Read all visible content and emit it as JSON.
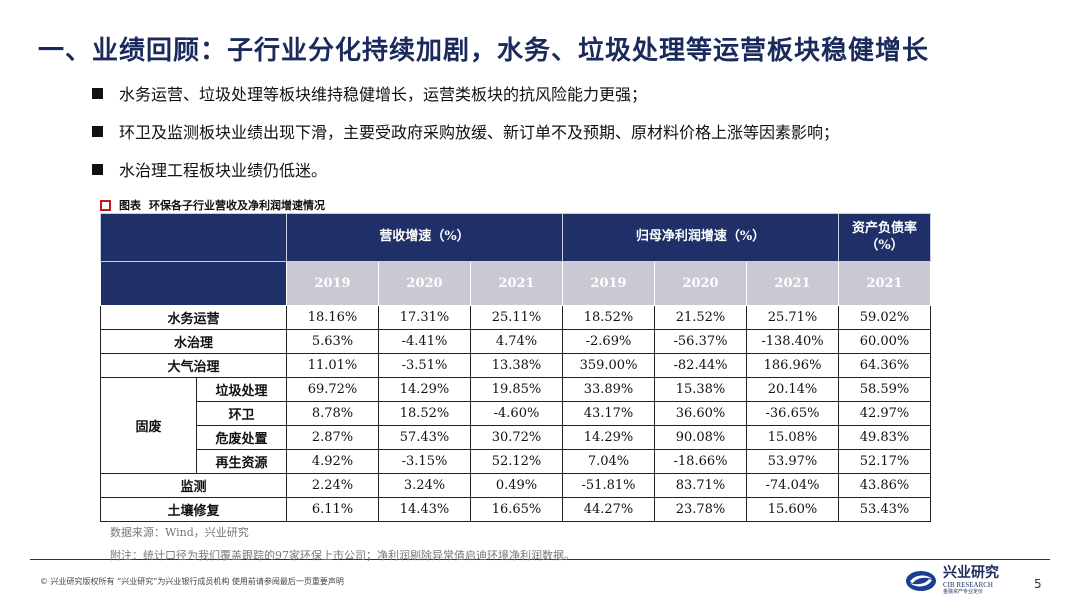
{
  "title": "一、业绩回顾：子行业分化持续加剧，水务、垃圾处理等运营板块稳健增长",
  "bullets": [
    "水务运营、垃圾处理等板块维持稳健增长，运营类板块的抗风险能力更强；",
    "环卫及监测板块业绩出现下滑，主要受政府采购放缓、新订单不及预期、原材料价格上涨等因素影响；",
    "水治理工程板块业绩仍低迷。"
  ],
  "chart_title": {
    "label": "图表",
    "text": "环保各子行业营收及净利润增速情况"
  },
  "table": {
    "group_headers": [
      "营收增速（%）",
      "归母净利润增速（%）",
      "资产负债率（%）"
    ],
    "years": [
      "2019",
      "2020",
      "2021",
      "2019",
      "2020",
      "2021",
      "2021"
    ],
    "rows": [
      {
        "category": "水务运营",
        "sub": "",
        "values": [
          "18.16%",
          "17.31%",
          "25.11%",
          "18.52%",
          "21.52%",
          "25.71%",
          "59.02%"
        ]
      },
      {
        "category": "水治理",
        "sub": "",
        "values": [
          "5.63%",
          "-4.41%",
          "4.74%",
          "-2.69%",
          "-56.37%",
          "-138.40%",
          "60.00%"
        ]
      },
      {
        "category": "大气治理",
        "sub": "",
        "values": [
          "11.01%",
          "-3.51%",
          "13.38%",
          "359.00%",
          "-82.44%",
          "186.96%",
          "64.36%"
        ]
      },
      {
        "category": "固废",
        "sub": "垃圾处理",
        "values": [
          "69.72%",
          "14.29%",
          "19.85%",
          "33.89%",
          "15.38%",
          "20.14%",
          "58.59%"
        ]
      },
      {
        "category": "固废",
        "sub": "环卫",
        "values": [
          "8.78%",
          "18.52%",
          "-4.60%",
          "43.17%",
          "36.60%",
          "-36.65%",
          "42.97%"
        ]
      },
      {
        "category": "固废",
        "sub": "危废处置",
        "values": [
          "2.87%",
          "57.43%",
          "30.72%",
          "14.29%",
          "90.08%",
          "15.08%",
          "49.83%"
        ]
      },
      {
        "category": "固废",
        "sub": "再生资源",
        "values": [
          "4.92%",
          "-3.15%",
          "52.12%",
          "7.04%",
          "-18.66%",
          "53.97%",
          "52.17%"
        ]
      },
      {
        "category": "监测",
        "sub": "",
        "values": [
          "2.24%",
          "3.24%",
          "0.49%",
          "-51.81%",
          "83.71%",
          "-74.04%",
          "43.86%"
        ]
      },
      {
        "category": "土壤修复",
        "sub": "",
        "values": [
          "6.11%",
          "14.43%",
          "16.65%",
          "44.27%",
          "23.78%",
          "15.60%",
          "53.43%"
        ]
      }
    ]
  },
  "source": "数据来源：Wind，兴业研究",
  "note": "附注：统计口径为我们覆盖跟踪的97家环保上市公司；净利润剔除异常值启迪环境净利润数据。",
  "footer": "©  兴业研究版权所有    “兴业研究”为兴业银行成员机构    使用前请参阅最后一页重要声明",
  "logo": {
    "cn": "兴业研究",
    "en": "CIB RESEARCH",
    "sub": "金融资产专业定价"
  },
  "page_number": "5"
}
